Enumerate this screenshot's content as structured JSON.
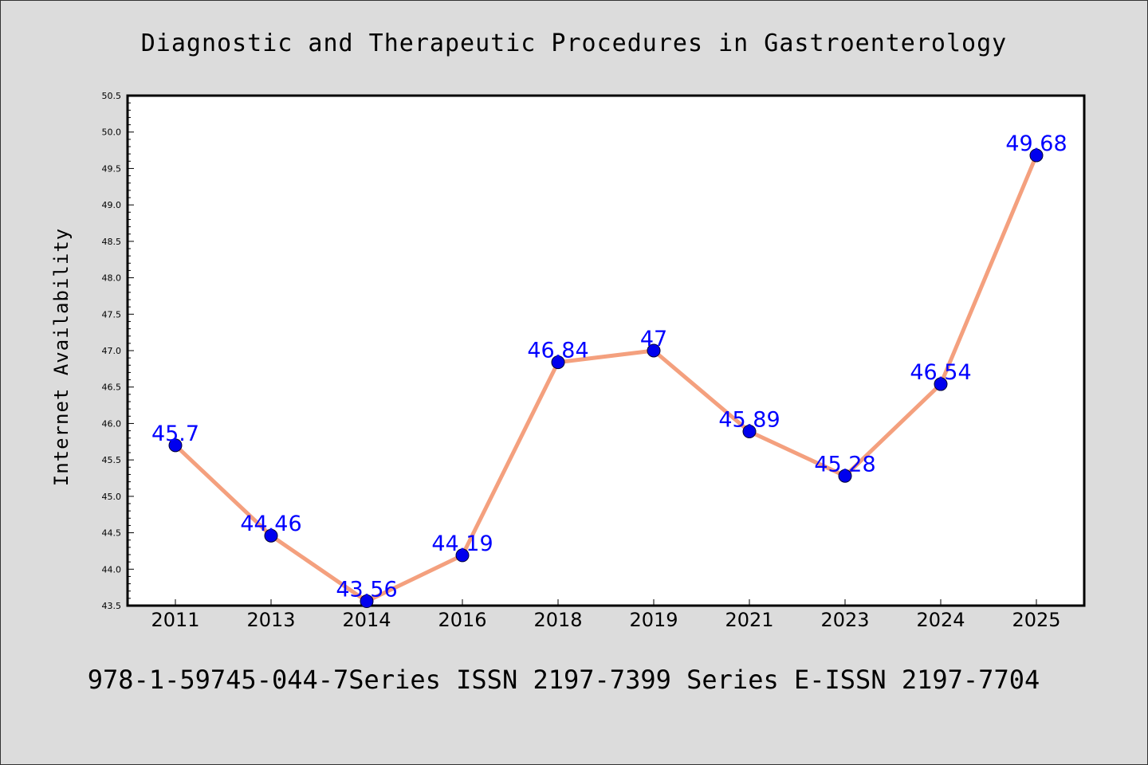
{
  "chart_data": {
    "type": "line",
    "title": "Diagnostic and Therapeutic Procedures in Gastroenterology",
    "xlabel": "",
    "ylabel": "Internet Availability",
    "footer": "978-1-59745-044-7Series ISSN 2197-7399 Series E-ISSN 2197-7704",
    "categories": [
      "2011",
      "2013",
      "2014",
      "2016",
      "2018",
      "2019",
      "2021",
      "2023",
      "2024",
      "2025"
    ],
    "series": [
      {
        "values": [
          45.7,
          44.46,
          43.56,
          44.19,
          46.84,
          47,
          45.89,
          45.28,
          46.54,
          49.68
        ],
        "labels": [
          "45.7",
          "44.46",
          "43.56",
          "44.19",
          "46.84",
          "47",
          "45.89",
          "45.28",
          "46.54",
          "49.68"
        ],
        "line_color": "#f4a07e",
        "marker_color": "#0000ee",
        "label_color": "#0000ff"
      }
    ],
    "ylim": [
      43.5,
      50.5
    ],
    "yticks": [
      "43.5",
      "44.0",
      "44.5",
      "45.0",
      "45.5",
      "46.0",
      "46.5",
      "47.0",
      "47.5",
      "48.0",
      "48.5",
      "49.0",
      "49.5",
      "50.0",
      "50.5"
    ],
    "grid": false,
    "legend": "none",
    "colors": {
      "background": "#dcdcdc",
      "plot_background": "#ffffff"
    }
  }
}
